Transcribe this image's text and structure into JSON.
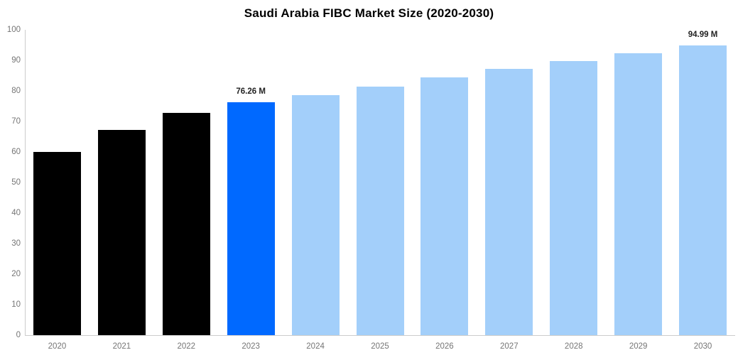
{
  "chart_data": {
    "type": "bar",
    "title": "Saudi Arabia FIBC Market Size (2020-2030)",
    "categories": [
      "2020",
      "2021",
      "2022",
      "2023",
      "2024",
      "2025",
      "2026",
      "2027",
      "2028",
      "2029",
      "2030"
    ],
    "values": [
      60.0,
      67.2,
      72.9,
      76.26,
      78.6,
      81.5,
      84.4,
      87.2,
      89.7,
      92.3,
      94.99
    ],
    "bar_colors": [
      "#000000",
      "#000000",
      "#000000",
      "#0069ff",
      "#a3cffa",
      "#a3cffa",
      "#a3cffa",
      "#a3cffa",
      "#a3cffa",
      "#a3cffa",
      "#a3cffa"
    ],
    "data_labels": [
      "",
      "",
      "",
      "76.26 M",
      "",
      "",
      "",
      "",
      "",
      "",
      "94.99 M"
    ],
    "xlabel": "",
    "ylabel": "",
    "ylim": [
      0,
      100
    ],
    "ytick_step": 10,
    "ytick_labels": [
      "0",
      "10",
      "20",
      "30",
      "40",
      "50",
      "60",
      "70",
      "80",
      "90",
      "100"
    ],
    "grid": false,
    "legend": "none",
    "colors": {
      "historical_bar": "#000000",
      "highlight_bar": "#0069ff",
      "forecast_bar": "#a3cffa",
      "axis_line": "#cccccc",
      "tick_label": "#757575",
      "data_label": "#222222",
      "title": "#000000",
      "background": "#ffffff"
    }
  }
}
